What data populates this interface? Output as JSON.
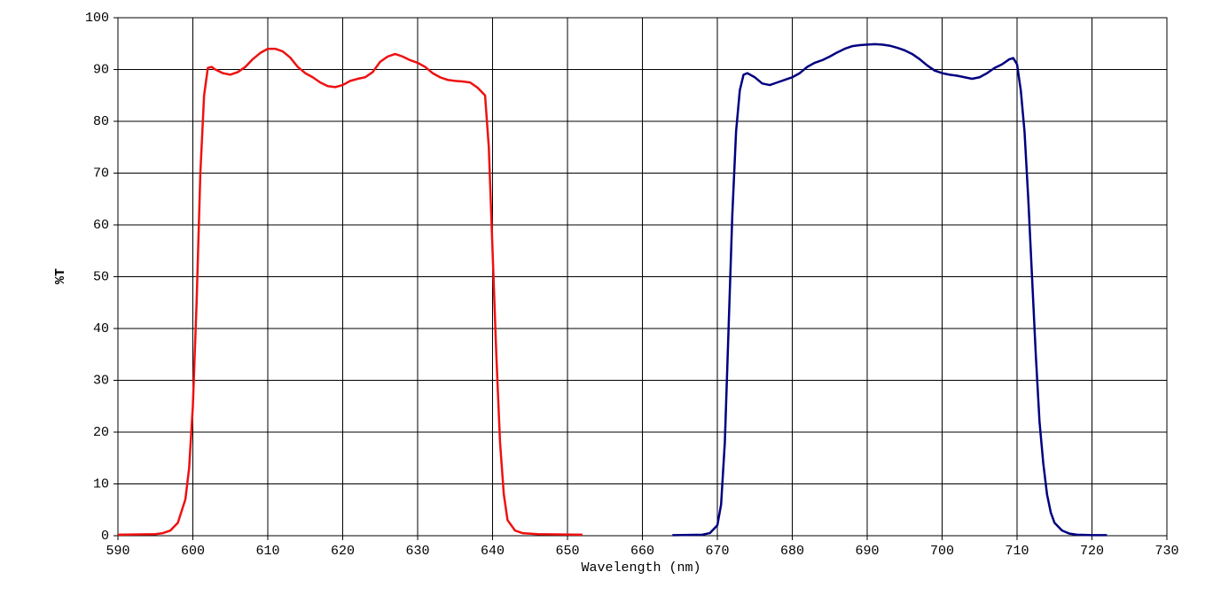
{
  "chart_data": {
    "type": "line",
    "xlabel": "Wavelength (nm)",
    "ylabel": "%T",
    "xlim": [
      590,
      730
    ],
    "ylim": [
      0,
      100
    ],
    "xticks": [
      590,
      600,
      610,
      620,
      630,
      640,
      650,
      660,
      670,
      680,
      690,
      700,
      710,
      720,
      730
    ],
    "yticks": [
      0,
      10,
      20,
      30,
      40,
      50,
      60,
      70,
      80,
      90,
      100
    ],
    "grid": true,
    "series": [
      {
        "color": "#ee1111",
        "x": [
          590,
          595,
          596,
          597,
          598,
          599,
          599.5,
          600,
          600.5,
          601,
          601.5,
          602,
          602.5,
          603,
          604,
          605,
          606,
          607,
          608,
          609,
          610,
          611,
          612,
          613,
          614,
          615,
          616,
          617,
          618,
          619,
          620,
          621,
          622,
          623,
          624,
          625,
          626,
          627,
          628,
          629,
          630,
          631,
          632,
          633,
          634,
          635,
          636,
          637,
          638,
          639,
          639.5,
          640,
          640.5,
          641,
          641.5,
          642,
          643,
          644,
          646,
          652
        ],
        "values": [
          0.2,
          0.3,
          0.5,
          1,
          2.5,
          7,
          13,
          25,
          45,
          70,
          85,
          90.3,
          90.5,
          90,
          89.3,
          89,
          89.5,
          90.5,
          92,
          93.2,
          94,
          94,
          93.5,
          92.3,
          90.5,
          89.3,
          88.5,
          87.5,
          86.8,
          86.6,
          87,
          87.8,
          88.2,
          88.5,
          89.5,
          91.5,
          92.5,
          93,
          92.5,
          91.8,
          91.3,
          90.5,
          89.3,
          88.5,
          88,
          87.8,
          87.7,
          87.5,
          86.5,
          85,
          75,
          55,
          35,
          18,
          8,
          3,
          1,
          0.5,
          0.3,
          0.2
        ]
      },
      {
        "color": "#000080",
        "x": [
          664,
          668,
          669,
          670,
          670.5,
          671,
          671.5,
          672,
          672.5,
          673,
          673.5,
          674,
          675,
          676,
          677,
          678,
          679,
          680,
          681,
          682,
          683,
          684,
          685,
          686,
          687,
          688,
          689,
          690,
          691,
          692,
          693,
          694,
          695,
          696,
          697,
          698,
          699,
          700,
          701,
          702,
          703,
          704,
          705,
          706,
          707,
          708,
          709,
          709.5,
          710,
          710.5,
          711,
          711.5,
          712,
          712.5,
          713,
          713.5,
          714,
          714.5,
          715,
          716,
          717,
          718,
          720,
          722
        ],
        "values": [
          0.1,
          0.2,
          0.5,
          2,
          6,
          18,
          40,
          62,
          78,
          86,
          89,
          89.3,
          88.5,
          87.3,
          87,
          87.5,
          88,
          88.5,
          89.3,
          90.5,
          91.3,
          91.8,
          92.5,
          93.3,
          94,
          94.5,
          94.7,
          94.8,
          94.9,
          94.8,
          94.6,
          94.2,
          93.7,
          93,
          92,
          90.8,
          89.8,
          89.3,
          89,
          88.8,
          88.5,
          88.2,
          88.5,
          89.3,
          90.3,
          91,
          92,
          92.2,
          91,
          86,
          78,
          65,
          50,
          35,
          22,
          14,
          8,
          4.5,
          2.5,
          1,
          0.4,
          0.2,
          0.1,
          0.1
        ]
      }
    ]
  }
}
